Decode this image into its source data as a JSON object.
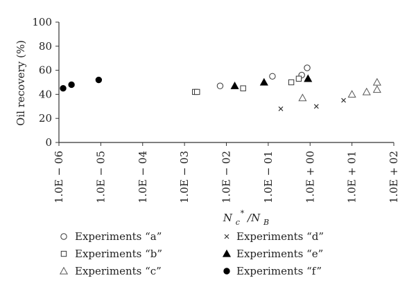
{
  "chart_data": {
    "type": "scatter",
    "xlabel": {
      "base": "N",
      "sub": "c",
      "sup": "*",
      "rest": "/N",
      "sub2": "B"
    },
    "ylabel": "Oil recovery (%)",
    "x_scale": "log10",
    "xlim": [
      -6,
      2
    ],
    "ylim": [
      0,
      100
    ],
    "x_tick_labels": [
      "1.0E − 06",
      "1.0E − 05",
      "1.0E − 04",
      "1.0E − 03",
      "1.0E − 02",
      "1.0E − 01",
      "1.0E + 00",
      "1.0E + 01",
      "1.0E + 02"
    ],
    "y_tick_labels": [
      "0",
      "20",
      "40",
      "60",
      "80",
      "100"
    ],
    "grid": false,
    "legend_position": "bottom",
    "series": [
      {
        "key": "a",
        "name": "Experiments “a”",
        "marker": "circle-open",
        "x": [
          -2.15,
          -0.9,
          -0.2,
          -0.07
        ],
        "y": [
          47,
          55,
          56,
          62
        ]
      },
      {
        "key": "b",
        "name": "Experiments “b”",
        "marker": "square-open",
        "x": [
          -2.75,
          -2.7,
          -1.6,
          -0.45,
          -0.27
        ],
        "y": [
          42,
          42,
          45,
          50,
          53
        ]
      },
      {
        "key": "c",
        "name": "Experiments “c”",
        "marker": "triangle-open",
        "x": [
          -0.18,
          1.0,
          1.35,
          1.6,
          1.6
        ],
        "y": [
          37,
          40,
          42,
          44,
          50
        ]
      },
      {
        "key": "d",
        "name": "Experiments “d”",
        "marker": "cross",
        "x": [
          -0.7,
          0.15,
          0.8
        ],
        "y": [
          28,
          30,
          35
        ]
      },
      {
        "key": "e",
        "name": "Experiments “e”",
        "marker": "triangle-filled",
        "x": [
          -1.8,
          -1.1,
          -0.05
        ],
        "y": [
          47,
          50,
          53
        ]
      },
      {
        "key": "f",
        "name": "Experiments “f”",
        "marker": "circle-filled",
        "x": [
          -5.9,
          -5.7,
          -5.05
        ],
        "y": [
          45,
          48,
          52
        ]
      }
    ]
  }
}
